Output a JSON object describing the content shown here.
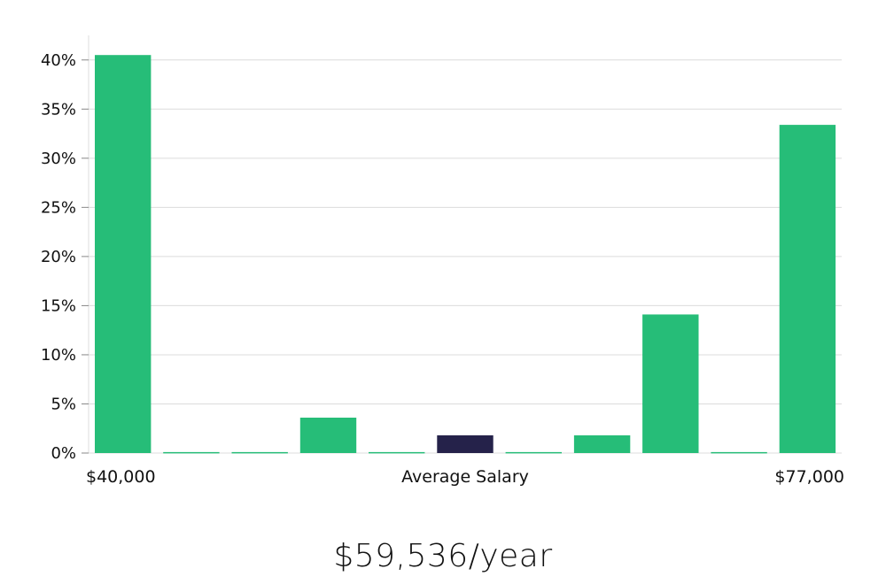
{
  "chart_data": {
    "type": "bar",
    "x_min_label": "$40,000",
    "x_center_label": "Average Salary",
    "x_max_label": "$77,000",
    "y_ticks": [
      "0%",
      "5%",
      "10%",
      "15%",
      "20%",
      "25%",
      "30%",
      "35%",
      "40%"
    ],
    "ylim": [
      0,
      42.5
    ],
    "values": [
      40.5,
      0.1,
      0.1,
      3.6,
      0.1,
      1.8,
      0.1,
      1.8,
      14.1,
      0.1,
      33.4
    ],
    "highlight_index": 5,
    "grid": true,
    "bar_color": "#26bd78",
    "highlight_color": "#25224a"
  },
  "summary": {
    "average_salary": "$59,536/year"
  }
}
